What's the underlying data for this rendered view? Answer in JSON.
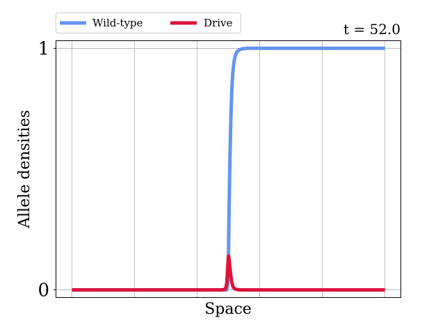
{
  "chart_data": {
    "type": "line",
    "title_right": "t = 52.0",
    "xlabel": "Space",
    "ylabel": "Allele densities",
    "y_ticks": [
      "0",
      "1"
    ],
    "ylim": [
      -0.03,
      1.03
    ],
    "xlim": [
      -0.05,
      1.05
    ],
    "grid": true,
    "legend_placement": "top-left, above axes",
    "series": [
      {
        "name": "Wild-type",
        "color": "#6495ED",
        "x": [
          0.0,
          0.49,
          0.495,
          0.498,
          0.5,
          0.502,
          0.505,
          0.508,
          0.511,
          0.514,
          0.518,
          0.522,
          0.527,
          0.535,
          0.545,
          0.56,
          0.6,
          1.0
        ],
        "y": [
          0.0,
          0.0,
          0.0,
          0.02,
          0.12,
          0.32,
          0.55,
          0.72,
          0.83,
          0.9,
          0.945,
          0.97,
          0.985,
          0.994,
          0.998,
          1.0,
          1.0,
          1.0
        ]
      },
      {
        "name": "Drive",
        "color": "#DC143C",
        "x": [
          0.0,
          0.48,
          0.488,
          0.492,
          0.495,
          0.498,
          0.5,
          0.502,
          0.505,
          0.508,
          0.511,
          0.514,
          0.518,
          0.523,
          0.53,
          0.54,
          1.0
        ],
        "y": [
          0.0,
          0.0,
          0.002,
          0.01,
          0.03,
          0.1,
          0.14,
          0.13,
          0.09,
          0.055,
          0.03,
          0.016,
          0.007,
          0.003,
          0.001,
          0.0,
          0.0
        ]
      }
    ]
  }
}
